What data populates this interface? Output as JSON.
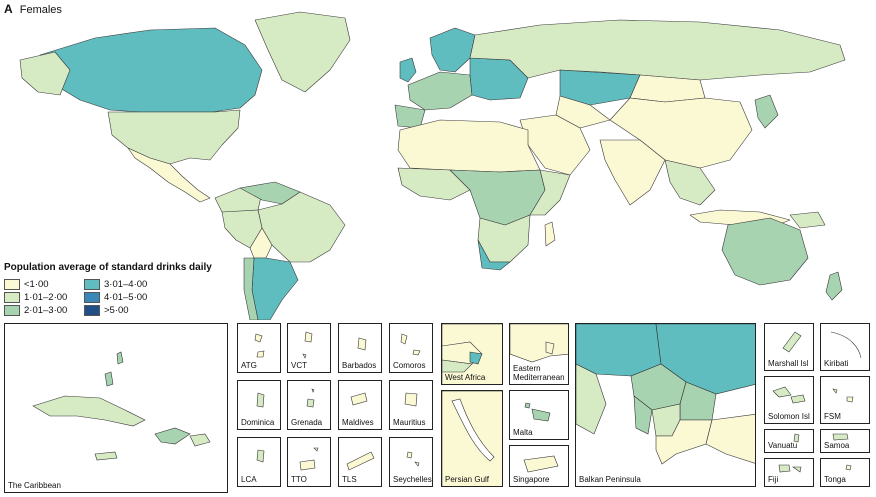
{
  "panel": {
    "letter": "A",
    "title": "Females"
  },
  "legend": {
    "title": "Population average of standard drinks daily",
    "items": [
      {
        "label": "<1·00",
        "color": "#fbf8d4"
      },
      {
        "label": "1·01–2·00",
        "color": "#d6ebc4"
      },
      {
        "label": "2·01–3·00",
        "color": "#a7d3b1"
      },
      {
        "label": "3·01–4·00",
        "color": "#5fbcbf"
      },
      {
        "label": "4·01–5·00",
        "color": "#3b88b8"
      },
      {
        "label": ">5·00",
        "color": "#1f4f86"
      }
    ]
  },
  "insets": {
    "caribbean": "The Caribbean",
    "atg": "ATG",
    "vct": "VCT",
    "barbados": "Barbados",
    "comoros": "Comoros",
    "dominica": "Dominica",
    "grenada": "Grenada",
    "maldives": "Maldives",
    "mauritius": "Mauritius",
    "lca": "LCA",
    "tto": "TTO",
    "tls": "TLS",
    "seychelles": "Seychelles",
    "west_africa": "West Africa",
    "eastern_med": "Eastern\nMediterranean",
    "malta": "Malta",
    "persian_gulf": "Persian Gulf",
    "singapore": "Singapore",
    "balkan": "Balkan Peninsula",
    "marshall": "Marshall Isl",
    "kiribati": "Kiribati",
    "solomon": "Solomon Isl",
    "fsm": "FSM",
    "vanuatu": "Vanuatu",
    "samoa": "Samoa",
    "fiji": "Fiji",
    "tonga": "Tonga"
  }
}
